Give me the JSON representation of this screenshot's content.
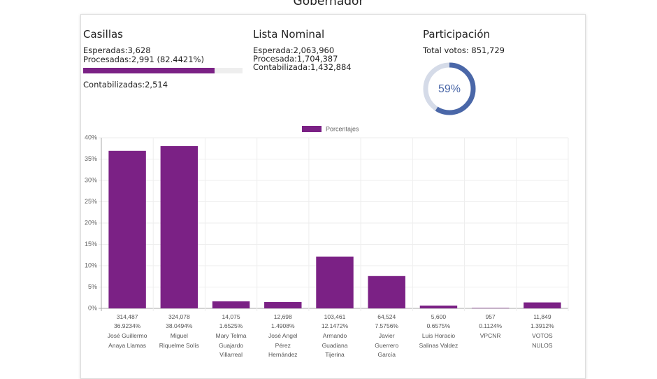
{
  "header": {
    "title": "Gobernador"
  },
  "casillas": {
    "title": "Casillas",
    "esperadas": "Esperadas:3,628",
    "procesadas": "Procesadas:2,991 (82.4421%)",
    "progress": 82.4421,
    "contabilizadas": "Contabilizadas:2,514"
  },
  "lista_nominal": {
    "title": "Lista Nominal",
    "esperada": "Esperada:2,063,960",
    "procesada": "Procesada:1,704,387",
    "contabilizada": "Contabilizada:1,432,884"
  },
  "participacion": {
    "title": "Participación",
    "total": "Total votos: 851,729",
    "value": 59,
    "label": "59%"
  },
  "chart_data": {
    "type": "bar",
    "categories": [
      "José Guillermo Anaya Llamas",
      "Miguel Riquelme Solís",
      "Mary Telma Guajardo Villarreal",
      "José Angel Pérez Hernández",
      "Armando Guadiana Tijerina",
      "Javier Guerrero García",
      "Luis Horacio Salinas Valdez",
      "VPCNR",
      "VOTOS NULOS"
    ],
    "votes": [
      "314,487",
      "324,078",
      "14,075",
      "12,698",
      "103,461",
      "64,524",
      "5,600",
      "957",
      "11,849"
    ],
    "series": [
      {
        "name": "Porcentajes",
        "color": "#7b2185",
        "values": [
          36.9234,
          38.0494,
          1.6525,
          1.4908,
          12.1472,
          7.5756,
          0.6575,
          0.1124,
          1.3912
        ],
        "value_labels": [
          "36.9234%",
          "38.0494%",
          "1.6525%",
          "1.4908%",
          "12.1472%",
          "7.5756%",
          "0.6575%",
          "0.1124%",
          "1.3912%"
        ]
      }
    ],
    "ylim": [
      0,
      40
    ],
    "yticks": [
      {
        "value": 0,
        "label": "0%"
      },
      {
        "value": 5,
        "label": "5%"
      },
      {
        "value": 10,
        "label": "10%"
      },
      {
        "value": 15,
        "label": "15%"
      },
      {
        "value": 20,
        "label": "20%"
      },
      {
        "value": 25,
        "label": "25%"
      },
      {
        "value": 30,
        "label": "30%"
      },
      {
        "value": 35,
        "label": "35%"
      },
      {
        "value": 40,
        "label": "40%"
      }
    ],
    "grid": true,
    "legend": "top"
  }
}
